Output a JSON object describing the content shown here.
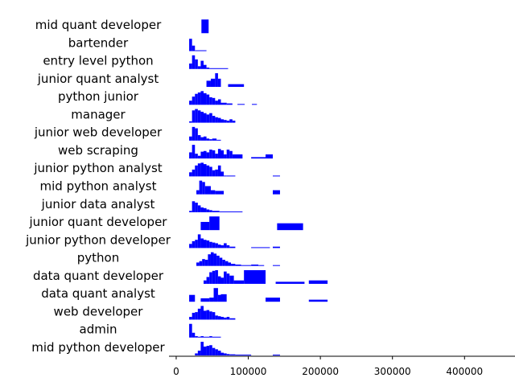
{
  "chart_data": {
    "type": "bar",
    "subtype": "stacked-histograms",
    "title": "",
    "xlabel": "",
    "ylabel": "",
    "xlim": [
      -10000,
      470000
    ],
    "x_ticks": [
      0,
      100000,
      200000,
      300000,
      400000
    ],
    "x_tick_labels": [
      "0",
      "100000",
      "200000",
      "300000",
      "400000"
    ],
    "grid": false,
    "legend": "none",
    "bar_color": "#0000ff",
    "categories": [
      "mid quant developer",
      "bartender",
      "entry level python",
      "junior quant analyst",
      "python junior",
      "manager",
      "junior web developer",
      "web scraping",
      "junior python analyst",
      "mid python analyst",
      "junior data analyst",
      "junior quant developer",
      "junior python developer",
      "python",
      "data quant developer",
      "data quant analyst",
      "web developer",
      "admin",
      "mid python developer"
    ],
    "histograms": [
      {
        "category": "mid quant developer",
        "bins": [
          [
            35000,
            45000,
            1.0
          ]
        ]
      },
      {
        "category": "bartender",
        "bins": [
          [
            18000,
            22000,
            0.9
          ],
          [
            22000,
            26000,
            0.4
          ],
          [
            26000,
            42000,
            0.05
          ]
        ]
      },
      {
        "category": "entry level python",
        "bins": [
          [
            18000,
            22000,
            0.4
          ],
          [
            22000,
            26000,
            1.0
          ],
          [
            26000,
            30000,
            0.7
          ],
          [
            30000,
            34000,
            0.2
          ],
          [
            34000,
            38000,
            0.6
          ],
          [
            38000,
            42000,
            0.3
          ],
          [
            42000,
            46000,
            0.1
          ],
          [
            46000,
            72000,
            0.05
          ]
        ]
      },
      {
        "category": "junior quant analyst",
        "bins": [
          [
            42000,
            48000,
            0.45
          ],
          [
            48000,
            54000,
            0.6
          ],
          [
            54000,
            58000,
            1.0
          ],
          [
            58000,
            62000,
            0.6
          ],
          [
            72000,
            94000,
            0.2
          ]
        ]
      },
      {
        "category": "python junior",
        "bins": [
          [
            18000,
            22000,
            0.3
          ],
          [
            22000,
            26000,
            0.6
          ],
          [
            26000,
            30000,
            0.8
          ],
          [
            30000,
            34000,
            0.9
          ],
          [
            34000,
            38000,
            1.0
          ],
          [
            38000,
            42000,
            0.85
          ],
          [
            42000,
            46000,
            0.75
          ],
          [
            46000,
            50000,
            0.55
          ],
          [
            50000,
            54000,
            0.5
          ],
          [
            54000,
            58000,
            0.3
          ],
          [
            58000,
            62000,
            0.4
          ],
          [
            62000,
            70000,
            0.15
          ],
          [
            70000,
            78000,
            0.1
          ],
          [
            85000,
            95000,
            0.05
          ],
          [
            105000,
            112000,
            0.05
          ]
        ]
      },
      {
        "category": "manager",
        "bins": [
          [
            18000,
            22000,
            0.1
          ],
          [
            22000,
            26000,
            0.9
          ],
          [
            26000,
            30000,
            1.0
          ],
          [
            30000,
            34000,
            0.9
          ],
          [
            34000,
            38000,
            0.8
          ],
          [
            38000,
            42000,
            0.7
          ],
          [
            42000,
            46000,
            0.6
          ],
          [
            46000,
            50000,
            0.7
          ],
          [
            50000,
            54000,
            0.5
          ],
          [
            54000,
            58000,
            0.4
          ],
          [
            58000,
            62000,
            0.35
          ],
          [
            62000,
            66000,
            0.25
          ],
          [
            66000,
            70000,
            0.2
          ],
          [
            70000,
            74000,
            0.15
          ],
          [
            74000,
            78000,
            0.25
          ],
          [
            78000,
            82000,
            0.15
          ]
        ]
      },
      {
        "category": "junior web developer",
        "bins": [
          [
            18000,
            22000,
            0.3
          ],
          [
            22000,
            26000,
            1.0
          ],
          [
            26000,
            30000,
            0.9
          ],
          [
            30000,
            34000,
            0.4
          ],
          [
            34000,
            38000,
            0.25
          ],
          [
            38000,
            42000,
            0.3
          ],
          [
            42000,
            46000,
            0.15
          ],
          [
            46000,
            50000,
            0.1
          ],
          [
            50000,
            56000,
            0.15
          ],
          [
            56000,
            62000,
            0.05
          ]
        ]
      },
      {
        "category": "web scraping",
        "bins": [
          [
            18000,
            22000,
            0.45
          ],
          [
            22000,
            26000,
            1.0
          ],
          [
            26000,
            30000,
            0.35
          ],
          [
            30000,
            34000,
            0.2
          ],
          [
            34000,
            38000,
            0.5
          ],
          [
            38000,
            42000,
            0.55
          ],
          [
            42000,
            46000,
            0.45
          ],
          [
            46000,
            50000,
            0.65
          ],
          [
            50000,
            54000,
            0.6
          ],
          [
            54000,
            58000,
            0.35
          ],
          [
            58000,
            62000,
            0.7
          ],
          [
            62000,
            66000,
            0.6
          ],
          [
            66000,
            70000,
            0.3
          ],
          [
            70000,
            74000,
            0.65
          ],
          [
            74000,
            78000,
            0.55
          ],
          [
            78000,
            92000,
            0.3
          ],
          [
            104000,
            124000,
            0.1
          ],
          [
            124000,
            134000,
            0.3
          ]
        ]
      },
      {
        "category": "junior python analyst",
        "bins": [
          [
            18000,
            22000,
            0.3
          ],
          [
            22000,
            26000,
            0.5
          ],
          [
            26000,
            30000,
            0.8
          ],
          [
            30000,
            34000,
            0.95
          ],
          [
            34000,
            38000,
            1.0
          ],
          [
            38000,
            42000,
            0.9
          ],
          [
            42000,
            46000,
            0.8
          ],
          [
            46000,
            50000,
            0.7
          ],
          [
            50000,
            54000,
            0.45
          ],
          [
            54000,
            58000,
            0.5
          ],
          [
            58000,
            62000,
            0.8
          ],
          [
            62000,
            66000,
            0.35
          ],
          [
            66000,
            70000,
            0.05
          ],
          [
            70000,
            82000,
            0.05
          ],
          [
            134000,
            144000,
            0.05
          ]
        ]
      },
      {
        "category": "mid python analyst",
        "bins": [
          [
            28000,
            32000,
            0.3
          ],
          [
            32000,
            36000,
            1.0
          ],
          [
            36000,
            40000,
            0.9
          ],
          [
            40000,
            48000,
            0.6
          ],
          [
            48000,
            54000,
            0.3
          ],
          [
            54000,
            66000,
            0.25
          ],
          [
            134000,
            144000,
            0.3
          ]
        ]
      },
      {
        "category": "junior data analyst",
        "bins": [
          [
            18000,
            22000,
            0.1
          ],
          [
            22000,
            26000,
            0.8
          ],
          [
            26000,
            30000,
            0.7
          ],
          [
            30000,
            34000,
            0.5
          ],
          [
            34000,
            38000,
            0.35
          ],
          [
            38000,
            42000,
            0.3
          ],
          [
            42000,
            46000,
            0.2
          ],
          [
            46000,
            50000,
            0.15
          ],
          [
            50000,
            60000,
            0.1
          ],
          [
            60000,
            92000,
            0.05
          ]
        ]
      },
      {
        "category": "junior quant developer",
        "bins": [
          [
            34000,
            46000,
            0.6
          ],
          [
            46000,
            60000,
            1.0
          ],
          [
            140000,
            176000,
            0.5
          ]
        ]
      },
      {
        "category": "junior python developer",
        "bins": [
          [
            18000,
            22000,
            0.3
          ],
          [
            22000,
            26000,
            0.5
          ],
          [
            26000,
            30000,
            0.6
          ],
          [
            30000,
            34000,
            1.0
          ],
          [
            34000,
            38000,
            0.7
          ],
          [
            38000,
            42000,
            0.6
          ],
          [
            42000,
            46000,
            0.55
          ],
          [
            46000,
            50000,
            0.45
          ],
          [
            50000,
            54000,
            0.4
          ],
          [
            54000,
            58000,
            0.35
          ],
          [
            58000,
            62000,
            0.25
          ],
          [
            62000,
            66000,
            0.2
          ],
          [
            66000,
            70000,
            0.35
          ],
          [
            70000,
            74000,
            0.2
          ],
          [
            74000,
            82000,
            0.1
          ],
          [
            104000,
            130000,
            0.05
          ],
          [
            134000,
            144000,
            0.1
          ]
        ]
      },
      {
        "category": "python",
        "bins": [
          [
            28000,
            32000,
            0.25
          ],
          [
            32000,
            36000,
            0.35
          ],
          [
            36000,
            40000,
            0.5
          ],
          [
            40000,
            44000,
            0.45
          ],
          [
            44000,
            48000,
            0.85
          ],
          [
            48000,
            52000,
            1.0
          ],
          [
            52000,
            56000,
            0.9
          ],
          [
            56000,
            60000,
            0.75
          ],
          [
            60000,
            64000,
            0.6
          ],
          [
            64000,
            68000,
            0.45
          ],
          [
            68000,
            72000,
            0.35
          ],
          [
            72000,
            76000,
            0.25
          ],
          [
            76000,
            82000,
            0.15
          ],
          [
            82000,
            90000,
            0.1
          ],
          [
            90000,
            104000,
            0.05
          ],
          [
            104000,
            114000,
            0.1
          ],
          [
            114000,
            122000,
            0.05
          ],
          [
            134000,
            144000,
            0.05
          ]
        ]
      },
      {
        "category": "data quant developer",
        "bins": [
          [
            38000,
            42000,
            0.25
          ],
          [
            42000,
            46000,
            0.5
          ],
          [
            46000,
            50000,
            0.85
          ],
          [
            50000,
            54000,
            0.95
          ],
          [
            54000,
            58000,
            1.0
          ],
          [
            58000,
            62000,
            0.55
          ],
          [
            62000,
            66000,
            0.45
          ],
          [
            66000,
            70000,
            0.9
          ],
          [
            70000,
            74000,
            0.75
          ],
          [
            74000,
            80000,
            0.6
          ],
          [
            80000,
            94000,
            0.25
          ],
          [
            94000,
            124000,
            1.0
          ],
          [
            138000,
            178000,
            0.15
          ],
          [
            184000,
            210000,
            0.25
          ]
        ]
      },
      {
        "category": "data quant analyst",
        "bins": [
          [
            18000,
            26000,
            0.5
          ],
          [
            34000,
            46000,
            0.25
          ],
          [
            46000,
            52000,
            0.3
          ],
          [
            52000,
            58000,
            1.0
          ],
          [
            58000,
            62000,
            0.5
          ],
          [
            62000,
            70000,
            0.55
          ],
          [
            124000,
            144000,
            0.3
          ],
          [
            184000,
            210000,
            0.15
          ]
        ]
      },
      {
        "category": "web developer",
        "bins": [
          [
            18000,
            22000,
            0.2
          ],
          [
            22000,
            26000,
            0.5
          ],
          [
            26000,
            30000,
            0.55
          ],
          [
            30000,
            34000,
            0.8
          ],
          [
            34000,
            38000,
            1.0
          ],
          [
            38000,
            42000,
            0.65
          ],
          [
            42000,
            46000,
            0.7
          ],
          [
            46000,
            50000,
            0.6
          ],
          [
            50000,
            54000,
            0.55
          ],
          [
            54000,
            58000,
            0.3
          ],
          [
            58000,
            62000,
            0.25
          ],
          [
            62000,
            66000,
            0.2
          ],
          [
            66000,
            70000,
            0.15
          ],
          [
            70000,
            74000,
            0.2
          ],
          [
            74000,
            82000,
            0.1
          ]
        ]
      },
      {
        "category": "admin",
        "bins": [
          [
            18000,
            22000,
            1.0
          ],
          [
            22000,
            26000,
            0.35
          ],
          [
            26000,
            30000,
            0.1
          ],
          [
            30000,
            34000,
            0.05
          ],
          [
            34000,
            38000,
            0.1
          ],
          [
            38000,
            46000,
            0.05
          ],
          [
            46000,
            50000,
            0.1
          ],
          [
            50000,
            62000,
            0.05
          ]
        ]
      },
      {
        "category": "mid python developer",
        "bins": [
          [
            26000,
            30000,
            0.15
          ],
          [
            30000,
            34000,
            0.35
          ],
          [
            34000,
            38000,
            1.0
          ],
          [
            38000,
            42000,
            0.65
          ],
          [
            42000,
            46000,
            0.7
          ],
          [
            46000,
            50000,
            0.75
          ],
          [
            50000,
            54000,
            0.55
          ],
          [
            54000,
            58000,
            0.45
          ],
          [
            58000,
            62000,
            0.35
          ],
          [
            62000,
            66000,
            0.2
          ],
          [
            66000,
            70000,
            0.15
          ],
          [
            70000,
            74000,
            0.1
          ],
          [
            74000,
            82000,
            0.08
          ],
          [
            82000,
            104000,
            0.05
          ],
          [
            134000,
            144000,
            0.05
          ]
        ]
      }
    ]
  }
}
